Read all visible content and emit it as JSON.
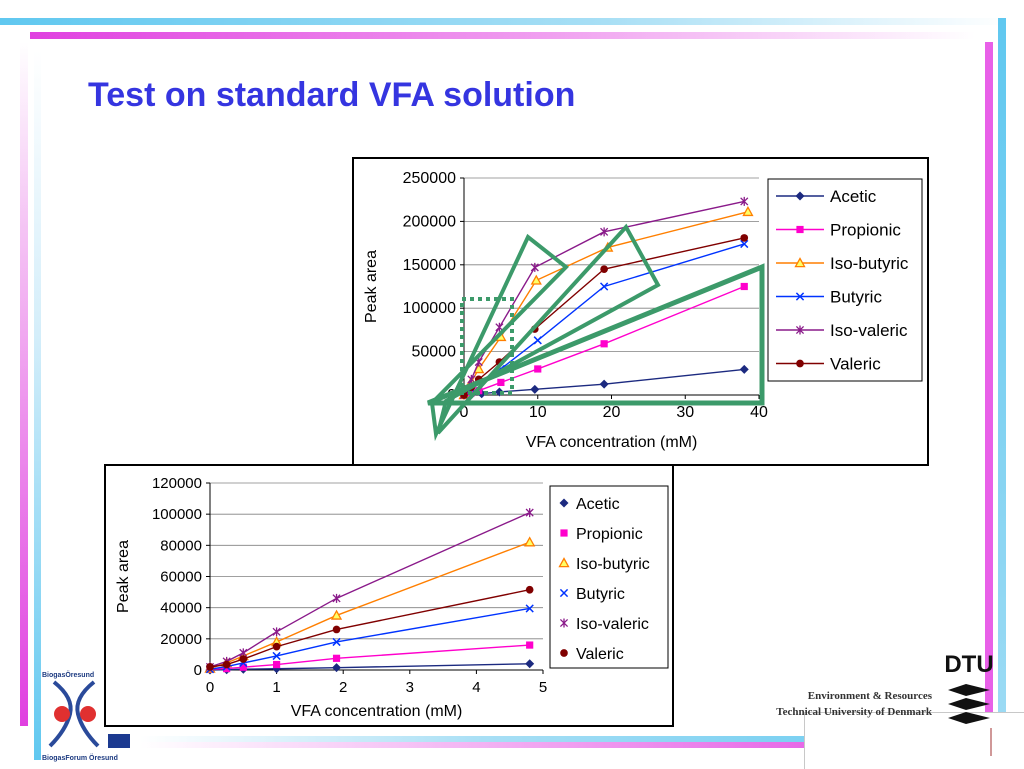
{
  "slide": {
    "title": "Test on standard VFA solution",
    "footer_line1": "Environment & Resources",
    "footer_line2": "Technical University of Denmark",
    "logo_left_top": "BiogasÖresund",
    "logo_left_bottom": "BiogasForum Öresund",
    "logo_right_text": "DTU"
  },
  "colors": {
    "title": "#3535e0",
    "band_magenta": "#e040e0",
    "band_cyan": "#60c8f0",
    "highlight_green": "#3c9a6a"
  },
  "chart_data": [
    {
      "type": "scatter",
      "title": "",
      "xlabel": "VFA concentration (mM)",
      "ylabel": "Peak area",
      "xlim": [
        0,
        40
      ],
      "ylim": [
        0,
        250000
      ],
      "xticks": [
        0,
        10,
        20,
        30,
        40
      ],
      "yticks": [
        0,
        50000,
        100000,
        150000,
        200000,
        250000
      ],
      "grid": "horizontal",
      "legend": "right",
      "series": [
        {
          "name": "Acetic",
          "color": "#1c2a80",
          "marker": "diamond",
          "points": [
            [
              0,
              0
            ],
            [
              1,
              500
            ],
            [
              2.4,
              1500
            ],
            [
              4.8,
              3500
            ],
            [
              9.6,
              6500
            ],
            [
              19,
              12500
            ],
            [
              38,
              29500
            ]
          ]
        },
        {
          "name": "Propionic",
          "color": "#ff00cc",
          "marker": "square",
          "points": [
            [
              0,
              0
            ],
            [
              1,
              2500
            ],
            [
              2,
              5000
            ],
            [
              5,
              14500
            ],
            [
              10,
              30000
            ],
            [
              19,
              59000
            ],
            [
              38,
              125000
            ]
          ]
        },
        {
          "name": "Iso-butyric",
          "color": "#ff7f00",
          "marker": "triangle",
          "points": [
            [
              0,
              0
            ],
            [
              1,
              15000
            ],
            [
              2,
              30000
            ],
            [
              5,
              67000
            ],
            [
              9.8,
              132000
            ],
            [
              19.5,
              170000
            ],
            [
              38.5,
              211000
            ]
          ]
        },
        {
          "name": "Butyric",
          "color": "#0033ff",
          "marker": "x",
          "points": [
            [
              0,
              0
            ],
            [
              1,
              7000
            ],
            [
              2,
              15000
            ],
            [
              5,
              30000
            ],
            [
              10,
              63000
            ],
            [
              19,
              125000
            ],
            [
              38,
              174000
            ]
          ]
        },
        {
          "name": "Iso-valeric",
          "color": "#8a1a8a",
          "marker": "star",
          "points": [
            [
              0,
              0
            ],
            [
              1,
              18000
            ],
            [
              2,
              38000
            ],
            [
              4.8,
              78000
            ],
            [
              9.6,
              147000
            ],
            [
              19,
              188000
            ],
            [
              38,
              223000
            ]
          ]
        },
        {
          "name": "Valeric",
          "color": "#800000",
          "marker": "circle",
          "points": [
            [
              0,
              0
            ],
            [
              1,
              9000
            ],
            [
              2,
              18000
            ],
            [
              4.8,
              38000
            ],
            [
              9.6,
              76000
            ],
            [
              19,
              145000
            ],
            [
              38,
              181000
            ]
          ]
        }
      ]
    },
    {
      "type": "scatter",
      "title": "",
      "xlabel": "VFA concentration (mM)",
      "ylabel": "Peak area",
      "xlim": [
        0,
        5
      ],
      "ylim": [
        0,
        120000
      ],
      "xticks": [
        0,
        1,
        2,
        3,
        4,
        5
      ],
      "yticks": [
        0,
        20000,
        40000,
        60000,
        80000,
        100000,
        120000
      ],
      "grid": "horizontal",
      "legend": "right",
      "series": [
        {
          "name": "Acetic",
          "color": "#1c2a80",
          "marker": "diamond",
          "points": [
            [
              0,
              0
            ],
            [
              0.25,
              200
            ],
            [
              0.5,
              500
            ],
            [
              1,
              800
            ],
            [
              1.9,
              1500
            ],
            [
              4.8,
              4000
            ]
          ]
        },
        {
          "name": "Propionic",
          "color": "#ff00cc",
          "marker": "square",
          "points": [
            [
              0,
              500
            ],
            [
              0.25,
              900
            ],
            [
              0.5,
              1800
            ],
            [
              1,
              3500
            ],
            [
              1.9,
              7500
            ],
            [
              4.8,
              16000
            ]
          ]
        },
        {
          "name": "Iso-butyric",
          "color": "#ff7f00",
          "marker": "triangle",
          "points": [
            [
              0,
              1000
            ],
            [
              0.25,
              4500
            ],
            [
              0.5,
              9000
            ],
            [
              1,
              18000
            ],
            [
              1.9,
              35000
            ],
            [
              4.8,
              82000
            ]
          ]
        },
        {
          "name": "Butyric",
          "color": "#0033ff",
          "marker": "x",
          "points": [
            [
              0,
              500
            ],
            [
              0.25,
              2200
            ],
            [
              0.5,
              4500
            ],
            [
              1,
              9000
            ],
            [
              1.9,
              18000
            ],
            [
              4.8,
              39500
            ]
          ]
        },
        {
          "name": "Iso-valeric",
          "color": "#8a1a8a",
          "marker": "star",
          "points": [
            [
              0,
              2000
            ],
            [
              0.25,
              5500
            ],
            [
              0.5,
              11000
            ],
            [
              1,
              24500
            ],
            [
              1.9,
              46000
            ],
            [
              4.8,
              101000
            ]
          ]
        },
        {
          "name": "Valeric",
          "color": "#800000",
          "marker": "circle",
          "points": [
            [
              0,
              2000
            ],
            [
              0.25,
              3500
            ],
            [
              0.5,
              7000
            ],
            [
              1,
              15000
            ],
            [
              1.9,
              26000
            ],
            [
              4.8,
              51500
            ]
          ]
        }
      ]
    }
  ]
}
